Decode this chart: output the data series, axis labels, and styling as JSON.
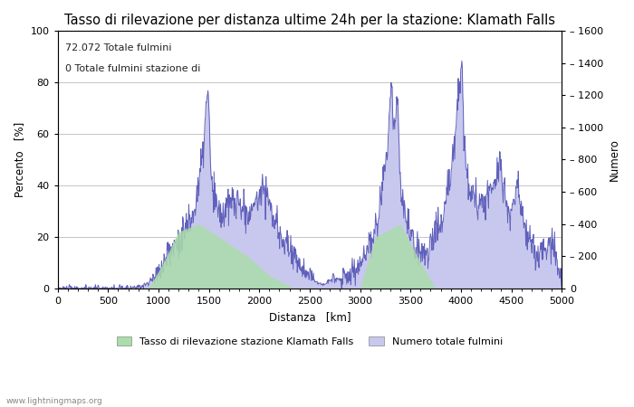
{
  "title": "Tasso di rilevazione per distanza ultime 24h per la stazione: Klamath Falls",
  "xlabel": "Distanza   [km]",
  "ylabel_left": "Percento   [%]",
  "ylabel_right": "Numero",
  "annotation_line1": "72.072 Totale fulmini",
  "annotation_line2": "0 Totale fulmini stazione di",
  "legend_green": "Tasso di rilevazione stazione Klamath Falls",
  "legend_blue": "Numero totale fulmini",
  "watermark": "www.lightningmaps.org",
  "xlim": [
    0,
    5000
  ],
  "ylim_left": [
    0,
    100
  ],
  "ylim_right": [
    0,
    1600
  ],
  "xticks": [
    0,
    500,
    1000,
    1500,
    2000,
    2500,
    3000,
    3500,
    4000,
    4500,
    5000
  ],
  "yticks_left": [
    0,
    20,
    40,
    60,
    80,
    100
  ],
  "yticks_right": [
    0,
    200,
    400,
    600,
    800,
    1000,
    1200,
    1400,
    1600
  ],
  "fill_blue_color": "#c8c8ee",
  "line_blue_color": "#6060bb",
  "fill_green_color": "#aaddaa",
  "background_color": "#ffffff",
  "grid_color": "#bbbbbb",
  "title_fontsize": 10.5,
  "label_fontsize": 8.5,
  "tick_fontsize": 8,
  "anno_fontsize": 8
}
